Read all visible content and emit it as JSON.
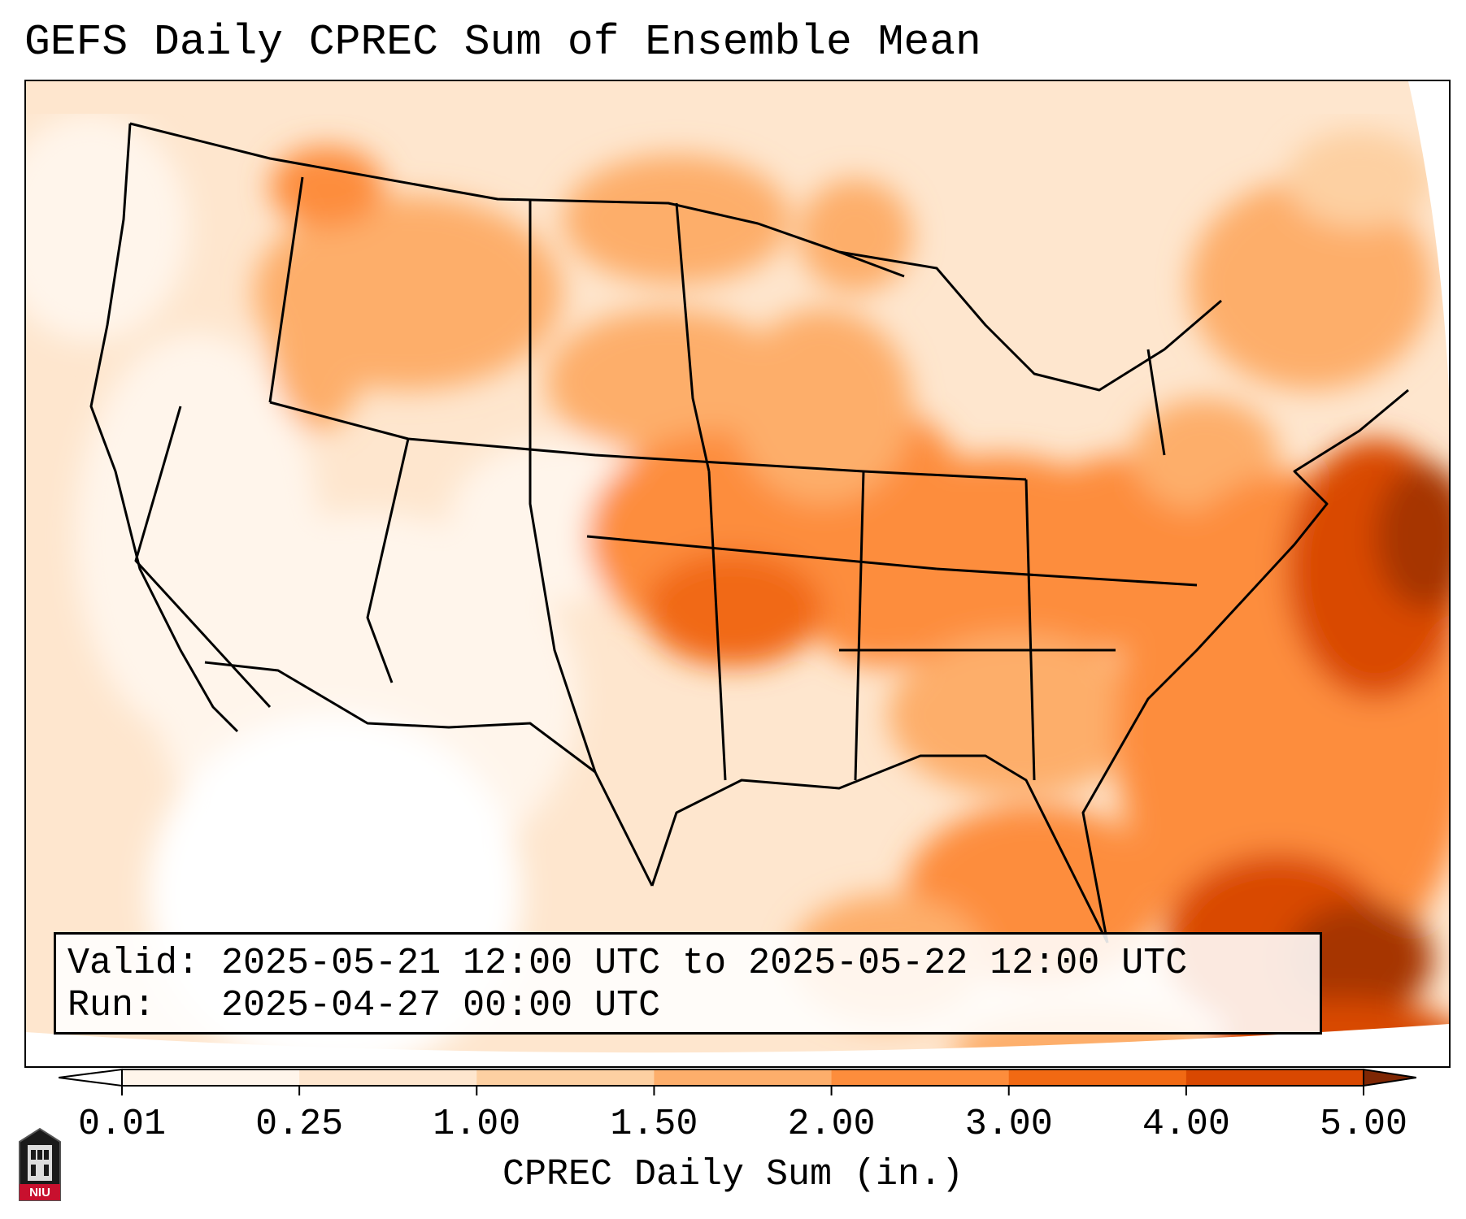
{
  "title": "GEFS Daily CPREC Sum of Ensemble Mean",
  "info": {
    "valid_label": "Valid:",
    "valid_value": "2025-05-21 12:00 UTC to 2025-05-22 12:00 UTC",
    "run_label": "Run:",
    "run_value": "2025-04-27 00:00 UTC"
  },
  "colorbar": {
    "label": "CPREC Daily Sum (in.)",
    "ticks": [
      "0.01",
      "0.25",
      "1.00",
      "1.50",
      "2.00",
      "3.00",
      "4.00",
      "5.00"
    ],
    "colors": [
      "#fff5eb",
      "#fee6ce",
      "#fdd0a2",
      "#fdae6b",
      "#fd8d3c",
      "#f16913",
      "#d94801",
      "#a63603"
    ],
    "under_color": "#ffffff",
    "over_color": "#7f2704"
  },
  "logo": {
    "text": "NIU",
    "icon": "university-tower-icon",
    "color": "#c8102e"
  }
}
